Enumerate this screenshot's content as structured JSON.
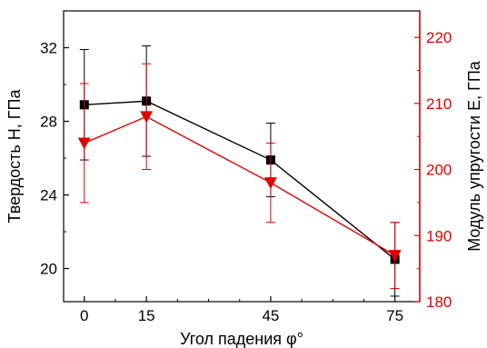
{
  "chart_data": {
    "type": "line",
    "xlabel": "Угол падения φ°",
    "ylabel_left": "Твердость H, ГПа",
    "ylabel_right": "Модуль упругости E, ГПа",
    "x_ticks": [
      "0",
      "15",
      "45",
      "75"
    ],
    "xlim": [
      -5,
      81
    ],
    "ylim_left": [
      18.2,
      34.0
    ],
    "ylim_right": [
      180,
      224
    ],
    "y_left_ticks": [
      "20",
      "24",
      "28",
      "32"
    ],
    "y_right_ticks": [
      "180",
      "190",
      "200",
      "210",
      "220"
    ],
    "grid": false,
    "colors": {
      "left": "#000000",
      "right": "#e00000"
    },
    "series": [
      {
        "axis": "left",
        "marker": "square",
        "color": "#000000",
        "x": [
          0,
          15,
          45,
          75
        ],
        "y": [
          28.9,
          29.1,
          25.9,
          20.5
        ],
        "err": [
          3.0,
          3.0,
          2.0,
          2.0
        ]
      },
      {
        "axis": "right",
        "marker": "triangle-down",
        "color": "#e00000",
        "x": [
          0,
          15,
          45,
          75
        ],
        "y": [
          204,
          208,
          198,
          187
        ],
        "err": [
          9,
          8,
          6,
          5
        ]
      }
    ]
  }
}
